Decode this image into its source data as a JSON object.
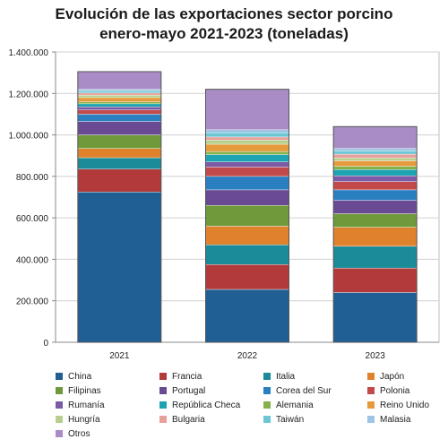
{
  "chart_data": {
    "type": "bar",
    "stacked": true,
    "title": [
      "Evolución de las exportaciones sector porcino",
      "enero-mayo  2021-2023 (toneladas)"
    ],
    "categories": [
      "2021",
      "2022",
      "2023"
    ],
    "ylim": [
      0,
      1400000
    ],
    "yticks": [
      "0",
      "200.000",
      "400.000",
      "600.000",
      "800.000",
      "1.000.000",
      "1.200.000",
      "1.400.000"
    ],
    "ytick_values": [
      0,
      200000,
      400000,
      600000,
      800000,
      1000000,
      1200000,
      1400000
    ],
    "grid": true,
    "legend_position": "bottom",
    "series": [
      {
        "name": "China",
        "color": "#1f5f94",
        "values": [
          725000,
          255000,
          240000
        ]
      },
      {
        "name": "Francia",
        "color": "#b23a3a",
        "values": [
          110000,
          120000,
          118000
        ]
      },
      {
        "name": "Italia",
        "color": "#1b8a99",
        "values": [
          55000,
          95000,
          105000
        ]
      },
      {
        "name": "Japón",
        "color": "#e0822b",
        "values": [
          45000,
          90000,
          92000
        ]
      },
      {
        "name": "Filipinas",
        "color": "#6f9a3b",
        "values": [
          65000,
          100000,
          65000
        ]
      },
      {
        "name": "Portugal",
        "color": "#6a4a93",
        "values": [
          65000,
          75000,
          65000
        ]
      },
      {
        "name": "Corea del Sur",
        "color": "#2a7fc1",
        "values": [
          35000,
          65000,
          50000
        ]
      },
      {
        "name": "Polonia",
        "color": "#c24a4a",
        "values": [
          20000,
          45000,
          40000
        ]
      },
      {
        "name": "Rumanía",
        "color": "#7b5aa6",
        "values": [
          15000,
          25000,
          28000
        ]
      },
      {
        "name": "República Checa",
        "color": "#1ea3b2",
        "values": [
          15000,
          35000,
          30000
        ]
      },
      {
        "name": "Alemania",
        "color": "#86b04a",
        "values": [
          10000,
          15000,
          16000
        ]
      },
      {
        "name": "Reino Unido",
        "color": "#e69a3c",
        "values": [
          20000,
          35000,
          26000
        ]
      },
      {
        "name": "Hungría",
        "color": "#b8cf8e",
        "values": [
          12000,
          20000,
          14000
        ]
      },
      {
        "name": "Bulgaria",
        "color": "#e8a09a",
        "values": [
          10000,
          15000,
          18000
        ]
      },
      {
        "name": "Taiwán",
        "color": "#6cc7d4",
        "values": [
          10000,
          20000,
          16000
        ]
      },
      {
        "name": "Malasia",
        "color": "#9ec4e6",
        "values": [
          8000,
          15000,
          12000
        ]
      },
      {
        "name": "Otros",
        "color": "#a98cc5",
        "values": [
          85000,
          195000,
          105000
        ]
      }
    ]
  }
}
